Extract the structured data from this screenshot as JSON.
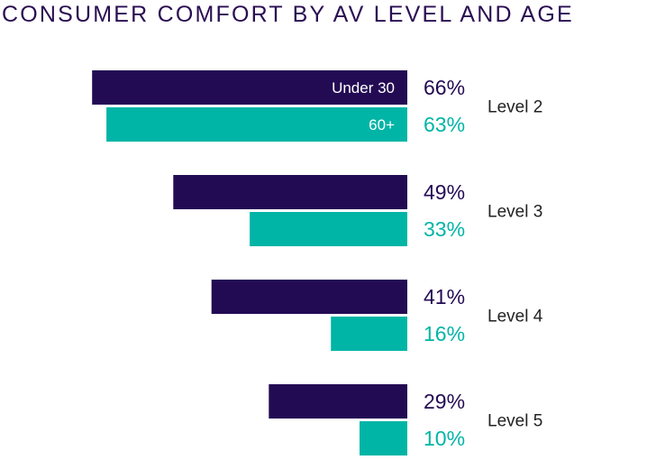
{
  "chart_data": {
    "type": "bar",
    "orientation": "horizontal",
    "title": "CONSUMER COMFORT BY AV LEVEL AND AGE",
    "categories": [
      "Level 2",
      "Level 3",
      "Level 4",
      "Level 5"
    ],
    "series": [
      {
        "name": "Under 30",
        "color": "#230b54",
        "values": [
          66,
          49,
          41,
          29
        ],
        "labels": [
          "66%",
          "49%",
          "41%",
          "29%"
        ]
      },
      {
        "name": "60+",
        "color": "#00b5a6",
        "values": [
          63,
          33,
          16,
          10
        ],
        "labels": [
          "63%",
          "33%",
          "16%",
          "10%"
        ]
      }
    ],
    "xlim": [
      0,
      100
    ],
    "grid": false,
    "legend": "inside first bars"
  }
}
